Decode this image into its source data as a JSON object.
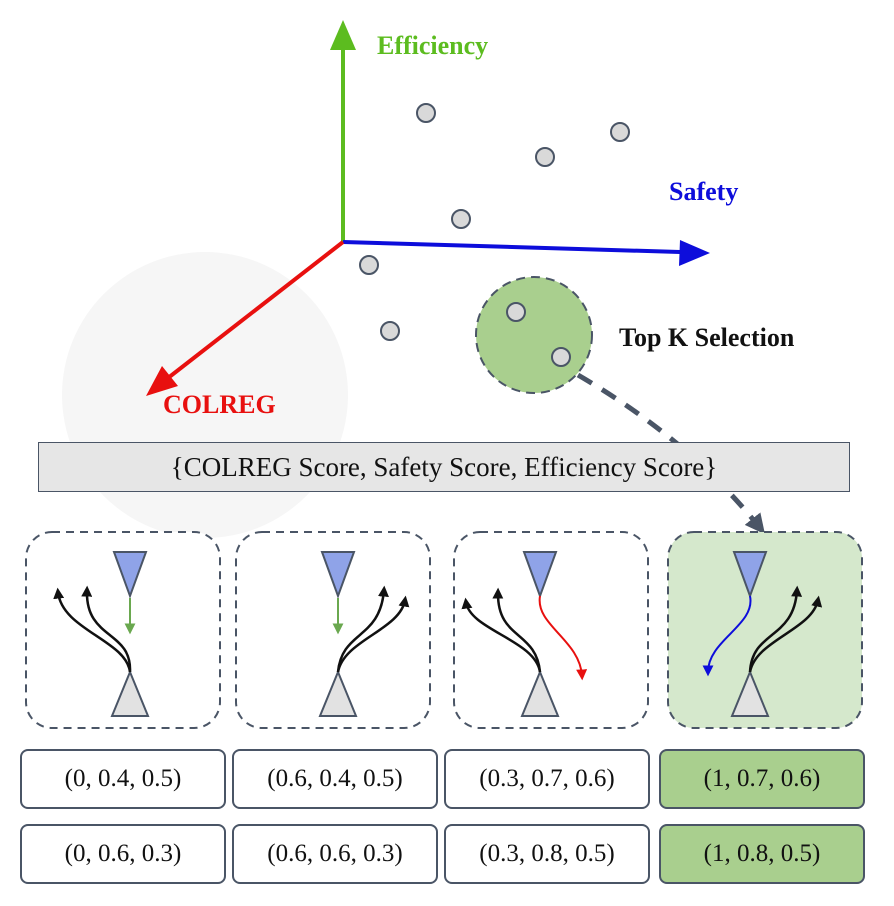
{
  "axes": {
    "efficiency_label": "Efficiency",
    "safety_label": "Safety",
    "colreg_label": "COLREG",
    "efficiency_color": "#5cbc1f",
    "safety_color": "#0d0ddb",
    "colreg_color": "#e8100f"
  },
  "selection_label": "Top K Selection",
  "selection_color": "#a9cf8e",
  "banner_text": "{COLREG Score, Safety Score, Efficiency Score}",
  "scenarios": [
    {
      "trajectory_color": "#6aa84f",
      "selected": false
    },
    {
      "trajectory_color": "#6aa84f",
      "selected": false
    },
    {
      "trajectory_color": "#e8100f",
      "selected": false
    },
    {
      "trajectory_color": "#0d0ddb",
      "selected": true
    }
  ],
  "scores_row1": [
    "(0, 0.4, 0.5)",
    "(0.6, 0.4, 0.5)",
    "(0.3, 0.7, 0.6)",
    "(1, 0.7, 0.6)"
  ],
  "scores_row2": [
    "(0, 0.6, 0.3)",
    "(0.6, 0.6, 0.3)",
    "(0.3, 0.8, 0.5)",
    "(1, 0.8, 0.5)"
  ]
}
